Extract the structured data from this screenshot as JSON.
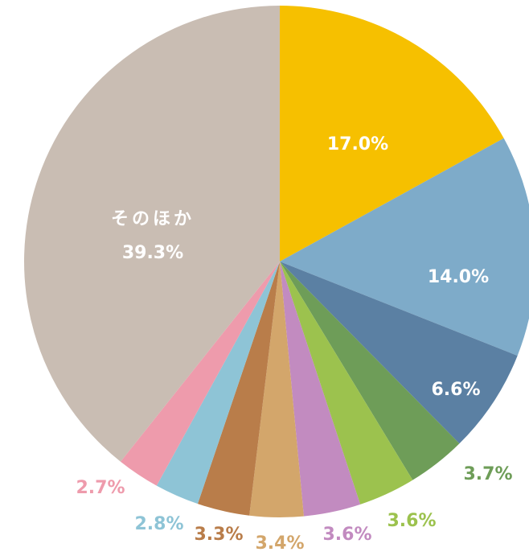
{
  "chart_data": {
    "type": "pie",
    "categories": [
      null,
      null,
      null,
      null,
      null,
      null,
      null,
      null,
      null,
      null,
      "そのほか"
    ],
    "values": [
      17.0,
      14.0,
      6.6,
      3.7,
      3.6,
      3.6,
      3.4,
      3.3,
      2.8,
      2.7,
      39.3
    ],
    "value_labels": [
      "17.0%",
      "14.0%",
      "6.6%",
      "3.7%",
      "3.6%",
      "3.6%",
      "3.4%",
      "3.3%",
      "2.8%",
      "2.7%",
      "39.3%"
    ],
    "colors": [
      "#f6c000",
      "#7eabc9",
      "#5b80a3",
      "#6e9d58",
      "#9cc24e",
      "#c28bc0",
      "#d3a66b",
      "#b97d4a",
      "#8ec4d6",
      "#ee9bac",
      "#c9bdb3"
    ]
  }
}
